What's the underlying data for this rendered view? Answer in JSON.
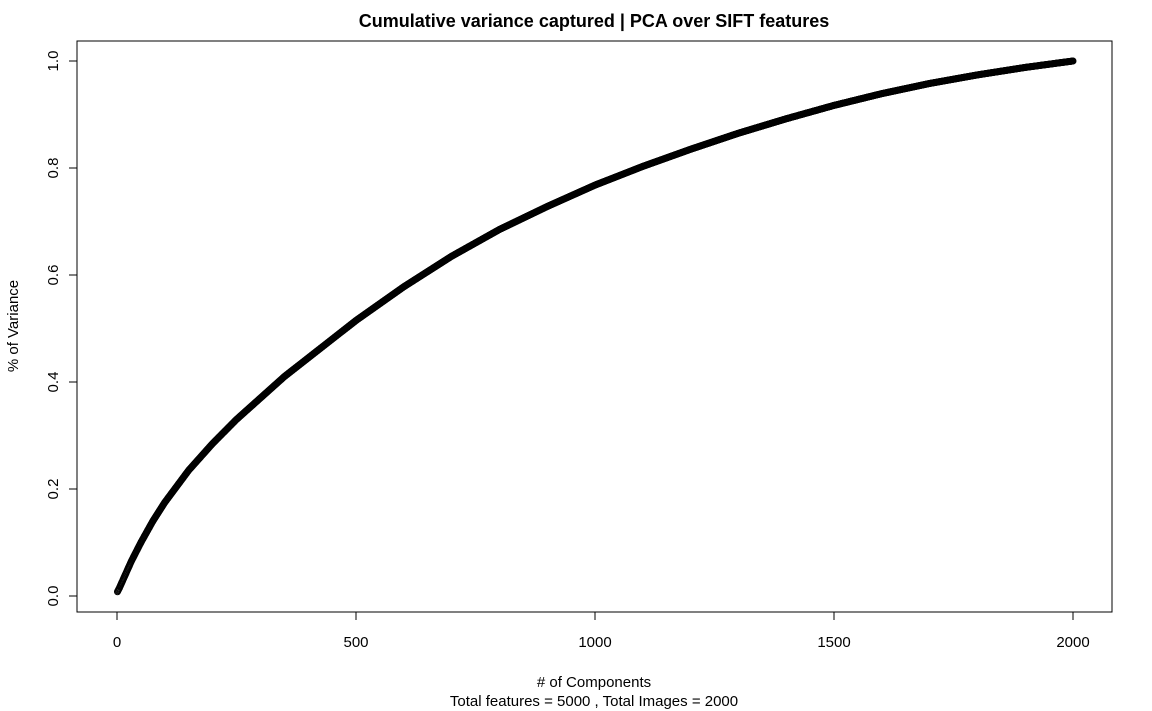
{
  "chart_data": {
    "type": "scatter",
    "title": "Cumulative variance captured | PCA over SIFT features",
    "xlabel": "# of Components",
    "xlabel_sub": "Total features =  5000 , Total Images =  2000",
    "ylabel": "% of Variance",
    "xlim": [
      0,
      2000
    ],
    "ylim": [
      0,
      1
    ],
    "x_ticks": [
      0,
      500,
      1000,
      1500,
      2000
    ],
    "x_tick_labels": [
      "0",
      "500",
      "1000",
      "1500",
      "2000"
    ],
    "y_ticks": [
      0.0,
      0.2,
      0.4,
      0.6,
      0.8,
      1.0
    ],
    "y_tick_labels": [
      "0.0",
      "0.2",
      "0.4",
      "0.6",
      "0.8",
      "1.0"
    ],
    "grid": false,
    "marker": "open-circle",
    "series_color": "#000000",
    "series": [
      {
        "x": [
          1,
          5,
          10,
          20,
          30,
          50,
          75,
          100,
          150,
          200,
          250,
          300,
          350,
          400,
          450,
          500,
          600,
          700,
          800,
          900,
          1000,
          1100,
          1200,
          1300,
          1400,
          1500,
          1600,
          1700,
          1800,
          1900,
          2000
        ],
        "values": [
          0.008,
          0.015,
          0.025,
          0.045,
          0.065,
          0.1,
          0.14,
          0.175,
          0.235,
          0.285,
          0.33,
          0.37,
          0.41,
          0.445,
          0.48,
          0.515,
          0.578,
          0.635,
          0.685,
          0.728,
          0.768,
          0.803,
          0.835,
          0.865,
          0.892,
          0.917,
          0.939,
          0.958,
          0.974,
          0.988,
          1.0
        ]
      }
    ]
  }
}
